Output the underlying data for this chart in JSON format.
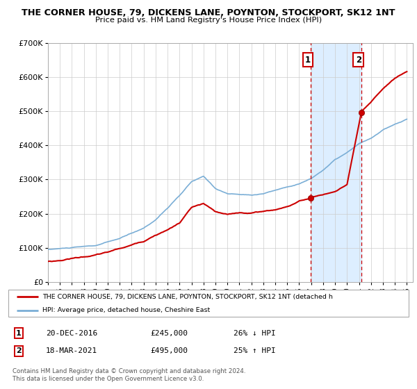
{
  "title_line1": "THE CORNER HOUSE, 79, DICKENS LANE, POYNTON, STOCKPORT, SK12 1NT",
  "title_line2": "Price paid vs. HM Land Registry's House Price Index (HPI)",
  "xlim": [
    1995,
    2025.5
  ],
  "ylim": [
    0,
    700000
  ],
  "yticks": [
    0,
    100000,
    200000,
    300000,
    400000,
    500000,
    600000,
    700000
  ],
  "ytick_labels": [
    "£0",
    "£100K",
    "£200K",
    "£300K",
    "£400K",
    "£500K",
    "£600K",
    "£700K"
  ],
  "xticks": [
    1995,
    1996,
    1997,
    1998,
    1999,
    2000,
    2001,
    2002,
    2003,
    2004,
    2005,
    2006,
    2007,
    2008,
    2009,
    2010,
    2011,
    2012,
    2013,
    2014,
    2015,
    2016,
    2017,
    2018,
    2019,
    2020,
    2021,
    2022,
    2023,
    2024,
    2025
  ],
  "sale1_x": 2016.97,
  "sale1_y": 245000,
  "sale1_label": "1",
  "sale1_date": "20-DEC-2016",
  "sale1_price": "£245,000",
  "sale1_hpi": "26% ↓ HPI",
  "sale2_x": 2021.21,
  "sale2_y": 495000,
  "sale2_label": "2",
  "sale2_date": "18-MAR-2021",
  "sale2_price": "£495,000",
  "sale2_hpi": "25% ↑ HPI",
  "vline1_x": 2016.97,
  "vline2_x": 2021.21,
  "red_color": "#cc0000",
  "blue_color": "#7aaed6",
  "shading_color": "#ddeeff",
  "legend_label1": "THE CORNER HOUSE, 79, DICKENS LANE, POYNTON, STOCKPORT, SK12 1NT (detached h",
  "legend_label2": "HPI: Average price, detached house, Cheshire East",
  "footer_line1": "Contains HM Land Registry data © Crown copyright and database right 2024.",
  "footer_line2": "This data is licensed under the Open Government Licence v3.0.",
  "key_years_hpi": [
    1995,
    1997,
    1999,
    2001,
    2003,
    2004,
    2005,
    2006,
    2007,
    2008,
    2009,
    2010,
    2011,
    2012,
    2013,
    2014,
    2015,
    2016,
    2017,
    2018,
    2019,
    2020,
    2021,
    2022,
    2023,
    2024,
    2025
  ],
  "key_vals_hpi": [
    95000,
    100000,
    105000,
    125000,
    155000,
    180000,
    215000,
    250000,
    290000,
    305000,
    270000,
    255000,
    252000,
    250000,
    255000,
    265000,
    275000,
    285000,
    300000,
    325000,
    355000,
    375000,
    400000,
    415000,
    440000,
    455000,
    470000
  ],
  "key_years_red": [
    1995,
    1996,
    1997,
    1998,
    1999,
    2000,
    2001,
    2002,
    2003,
    2004,
    2005,
    2006,
    2007,
    2008,
    2009,
    2010,
    2011,
    2012,
    2013,
    2014,
    2015,
    2016,
    2016.97,
    2017,
    2018,
    2019,
    2020,
    2021.21,
    2022,
    2023,
    2024,
    2025
  ],
  "key_vals_red": [
    60000,
    63000,
    70000,
    75000,
    80000,
    88000,
    98000,
    108000,
    120000,
    140000,
    155000,
    175000,
    220000,
    230000,
    205000,
    195000,
    200000,
    200000,
    205000,
    210000,
    220000,
    235000,
    245000,
    248000,
    255000,
    265000,
    285000,
    495000,
    520000,
    560000,
    590000,
    610000
  ]
}
